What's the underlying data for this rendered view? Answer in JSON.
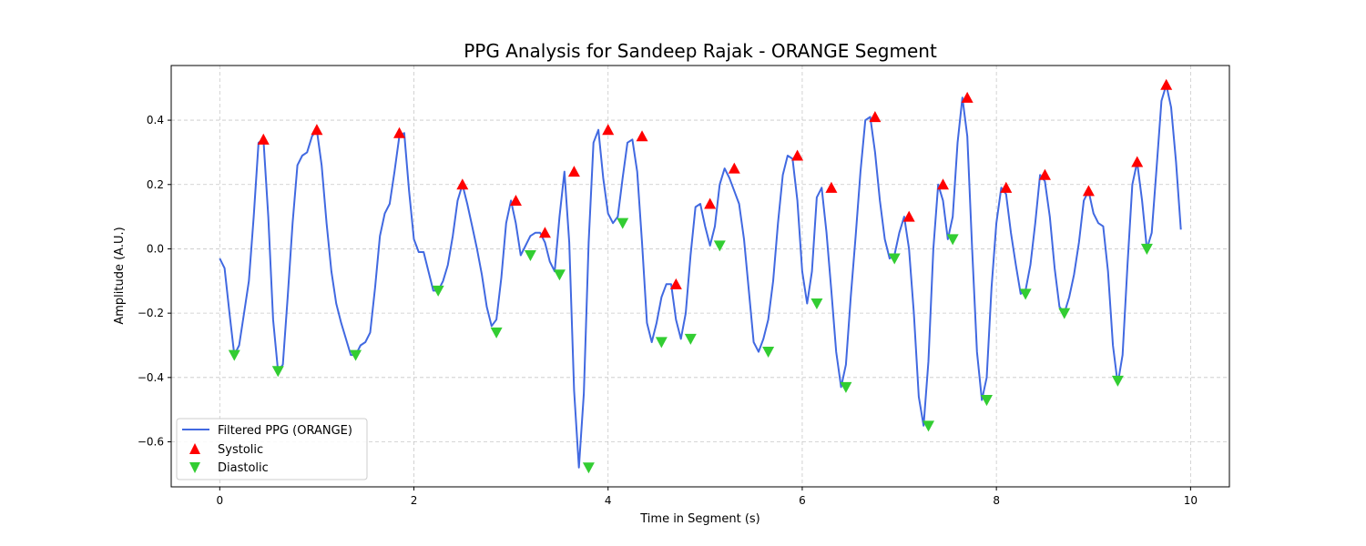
{
  "chart_data": {
    "type": "line",
    "title": "PPG Analysis for Sandeep Rajak - ORANGE Segment",
    "xlabel": "Time in Segment (s)",
    "ylabel": "Amplitude (A.U.)",
    "xlim": [
      -0.5,
      10.4
    ],
    "ylim": [
      -0.74,
      0.57
    ],
    "xticks": [
      0,
      2,
      4,
      6,
      8,
      10
    ],
    "xtick_labels": [
      "0",
      "2",
      "4",
      "6",
      "8",
      "10"
    ],
    "yticks": [
      -0.6,
      -0.4,
      -0.2,
      0.0,
      0.2,
      0.4
    ],
    "ytick_labels": [
      "−0.6",
      "−0.4",
      "−0.2",
      "0.0",
      "0.2",
      "0.4"
    ],
    "grid": true,
    "legend_position": "lower-left",
    "colors": {
      "line": "#4169e1",
      "systolic": "#ff0000",
      "diastolic": "#32cd32"
    },
    "series": [
      {
        "name": "Filtered PPG (ORANGE)",
        "kind": "line",
        "x": [
          0,
          0.05,
          0.1,
          0.15,
          0.2,
          0.25,
          0.3,
          0.35,
          0.4,
          0.45,
          0.5,
          0.55,
          0.6,
          0.65,
          0.7,
          0.75,
          0.8,
          0.85,
          0.9,
          0.95,
          1.0,
          1.05,
          1.1,
          1.15,
          1.2,
          1.25,
          1.3,
          1.35,
          1.4,
          1.45,
          1.5,
          1.55,
          1.6,
          1.65,
          1.7,
          1.75,
          1.8,
          1.85,
          1.9,
          1.95,
          2.0,
          2.05,
          2.1,
          2.15,
          2.2,
          2.25,
          2.3,
          2.35,
          2.4,
          2.45,
          2.5,
          2.55,
          2.6,
          2.65,
          2.7,
          2.75,
          2.8,
          2.85,
          2.9,
          2.95,
          3.0,
          3.05,
          3.1,
          3.15,
          3.2,
          3.25,
          3.3,
          3.35,
          3.4,
          3.45,
          3.5,
          3.55,
          3.6,
          3.65,
          3.7,
          3.75,
          3.8,
          3.85,
          3.9,
          3.95,
          4.0,
          4.05,
          4.1,
          4.15,
          4.2,
          4.25,
          4.3,
          4.35,
          4.4,
          4.45,
          4.5,
          4.55,
          4.6,
          4.65,
          4.7,
          4.75,
          4.8,
          4.85,
          4.9,
          4.95,
          5.0,
          5.05,
          5.1,
          5.15,
          5.2,
          5.25,
          5.3,
          5.35,
          5.4,
          5.45,
          5.5,
          5.55,
          5.6,
          5.65,
          5.7,
          5.75,
          5.8,
          5.85,
          5.9,
          5.95,
          6.0,
          6.05,
          6.1,
          6.15,
          6.2,
          6.25,
          6.3,
          6.35,
          6.4,
          6.45,
          6.5,
          6.55,
          6.6,
          6.65,
          6.7,
          6.75,
          6.8,
          6.85,
          6.9,
          6.95,
          7.0,
          7.05,
          7.1,
          7.15,
          7.2,
          7.25,
          7.3,
          7.35,
          7.4,
          7.45,
          7.5,
          7.55,
          7.6,
          7.65,
          7.7,
          7.75,
          7.8,
          7.85,
          7.9,
          7.95,
          8.0,
          8.05,
          8.1,
          8.15,
          8.2,
          8.25,
          8.3,
          8.35,
          8.4,
          8.45,
          8.5,
          8.55,
          8.6,
          8.65,
          8.7,
          8.75,
          8.8,
          8.85,
          8.9,
          8.95,
          9.0,
          9.05,
          9.1,
          9.15,
          9.2,
          9.25,
          9.3,
          9.35,
          9.4,
          9.45,
          9.5,
          9.55,
          9.6,
          9.65,
          9.7,
          9.75,
          9.8,
          9.85,
          9.9
        ],
        "y": [
          -0.03,
          -0.06,
          -0.2,
          -0.33,
          -0.3,
          -0.2,
          -0.1,
          0.1,
          0.33,
          0.34,
          0.1,
          -0.22,
          -0.38,
          -0.36,
          -0.15,
          0.08,
          0.26,
          0.29,
          0.3,
          0.35,
          0.37,
          0.26,
          0.08,
          -0.07,
          -0.17,
          -0.23,
          -0.28,
          -0.33,
          -0.33,
          -0.3,
          -0.29,
          -0.26,
          -0.12,
          0.04,
          0.11,
          0.14,
          0.24,
          0.35,
          0.36,
          0.18,
          0.03,
          -0.01,
          -0.01,
          -0.07,
          -0.13,
          -0.13,
          -0.1,
          -0.05,
          0.04,
          0.15,
          0.2,
          0.14,
          0.07,
          0.0,
          -0.08,
          -0.18,
          -0.24,
          -0.22,
          -0.09,
          0.08,
          0.15,
          0.08,
          -0.02,
          0.01,
          0.04,
          0.05,
          0.05,
          0.02,
          -0.04,
          -0.07,
          0.1,
          0.24,
          0.02,
          -0.44,
          -0.68,
          -0.45,
          0.02,
          0.33,
          0.37,
          0.22,
          0.11,
          0.08,
          0.1,
          0.22,
          0.33,
          0.34,
          0.24,
          0.02,
          -0.23,
          -0.29,
          -0.23,
          -0.15,
          -0.11,
          -0.11,
          -0.22,
          -0.28,
          -0.2,
          -0.02,
          0.13,
          0.14,
          0.07,
          0.01,
          0.07,
          0.2,
          0.25,
          0.22,
          0.18,
          0.14,
          0.03,
          -0.13,
          -0.29,
          -0.32,
          -0.28,
          -0.22,
          -0.1,
          0.08,
          0.23,
          0.29,
          0.28,
          0.15,
          -0.07,
          -0.17,
          -0.07,
          0.16,
          0.19,
          0.05,
          -0.13,
          -0.32,
          -0.43,
          -0.36,
          -0.15,
          0.04,
          0.24,
          0.4,
          0.41,
          0.3,
          0.15,
          0.03,
          -0.03,
          -0.02,
          0.05,
          0.1,
          0.0,
          -0.2,
          -0.46,
          -0.55,
          -0.35,
          0.0,
          0.2,
          0.15,
          0.03,
          0.1,
          0.33,
          0.47,
          0.35,
          0.0,
          -0.32,
          -0.47,
          -0.4,
          -0.12,
          0.08,
          0.19,
          0.17,
          0.05,
          -0.05,
          -0.14,
          -0.13,
          -0.05,
          0.08,
          0.23,
          0.21,
          0.1,
          -0.06,
          -0.18,
          -0.2,
          -0.15,
          -0.08,
          0.02,
          0.15,
          0.18,
          0.11,
          0.08,
          0.07,
          -0.07,
          -0.3,
          -0.42,
          -0.33,
          -0.05,
          0.2,
          0.27,
          0.15,
          0.0,
          0.05,
          0.25,
          0.46,
          0.51,
          0.44,
          0.27,
          0.06
        ]
      },
      {
        "name": "Systolic",
        "kind": "marker-up",
        "x": [
          0.45,
          1.0,
          1.85,
          2.5,
          3.05,
          3.35,
          3.65,
          4.0,
          4.35,
          4.7,
          5.05,
          5.3,
          5.95,
          6.3,
          6.75,
          7.1,
          7.45,
          7.7,
          8.1,
          8.5,
          8.95,
          9.45,
          9.75
        ],
        "y": [
          0.34,
          0.37,
          0.36,
          0.2,
          0.15,
          0.05,
          0.24,
          0.37,
          0.35,
          -0.11,
          0.14,
          0.25,
          0.29,
          0.19,
          0.41,
          0.1,
          0.2,
          0.47,
          0.19,
          0.23,
          0.18,
          0.27,
          0.51
        ]
      },
      {
        "name": "Diastolic",
        "kind": "marker-down",
        "x": [
          0.15,
          0.6,
          1.4,
          2.25,
          2.85,
          3.2,
          3.5,
          3.8,
          4.15,
          4.55,
          4.85,
          5.15,
          5.65,
          6.15,
          6.45,
          6.95,
          7.3,
          7.55,
          7.9,
          8.3,
          8.7,
          9.25,
          9.55
        ],
        "y": [
          -0.33,
          -0.38,
          -0.33,
          -0.13,
          -0.26,
          -0.02,
          -0.08,
          -0.68,
          0.08,
          -0.29,
          -0.28,
          0.01,
          -0.32,
          -0.17,
          -0.43,
          -0.03,
          -0.55,
          0.03,
          -0.47,
          -0.14,
          -0.2,
          -0.41,
          0.0
        ]
      }
    ]
  }
}
